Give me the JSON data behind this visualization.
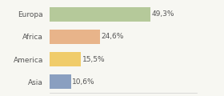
{
  "categories": [
    "Europa",
    "Africa",
    "America",
    "Asia"
  ],
  "values": [
    49.3,
    24.6,
    15.5,
    10.6
  ],
  "labels": [
    "49,3%",
    "24,6%",
    "15,5%",
    "10,6%"
  ],
  "bar_colors": [
    "#b5c99a",
    "#e8b48a",
    "#f0cc6a",
    "#8a9fc0"
  ],
  "background_color": "#f7f7f2",
  "label_fontsize": 6.5,
  "category_fontsize": 6.5,
  "bar_height": 0.65,
  "xlim": [
    0,
    72
  ]
}
